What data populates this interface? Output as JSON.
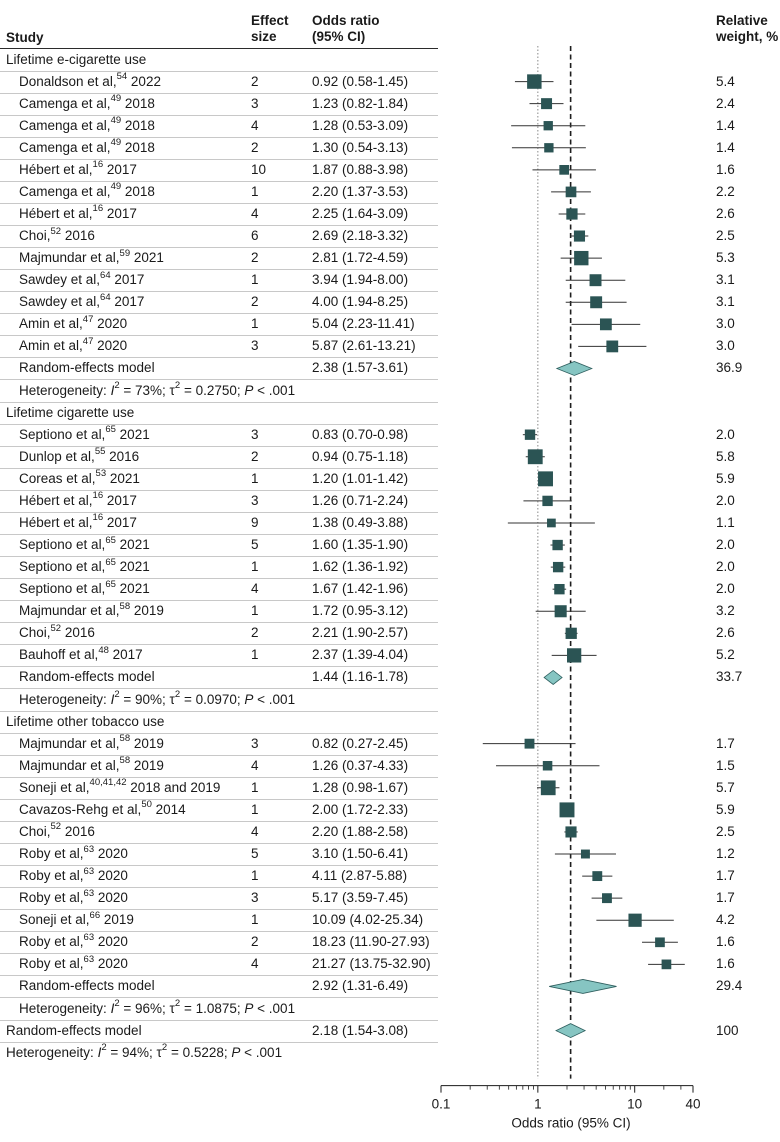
{
  "headers": {
    "study": "Study",
    "effect_size_line1": "Effect",
    "effect_size_line2": "size",
    "or_line1": "Odds ratio",
    "or_line2": "(95% CI)",
    "weight_line1": "Relative",
    "weight_line2": "weight, %"
  },
  "colors": {
    "marker": "#2b5454",
    "diamond": "#86c5c2",
    "diamond_stroke": "#2f5f5f",
    "line": "#333333"
  },
  "chart_data": {
    "type": "forest",
    "xlabel": "Odds ratio (95% CI)",
    "xscale": "log",
    "xlim": [
      0.1,
      40
    ],
    "ticks": [
      0.1,
      1,
      10,
      40
    ],
    "tick_labels": [
      "0.1",
      "1",
      "10",
      "40"
    ],
    "null_line": 1,
    "overall_line": 2.18,
    "rows": [
      {
        "kind": "section",
        "label": "Lifetime e-cigarette use"
      },
      {
        "kind": "study",
        "author": "Donaldson et al,",
        "ref": "54",
        "year": "2022",
        "es": "2",
        "text": "0.92 (0.58-1.45)",
        "or": 0.92,
        "lo": 0.58,
        "hi": 1.45,
        "w": 5.4,
        "wt": "5.4"
      },
      {
        "kind": "study",
        "author": "Camenga et al,",
        "ref": "49",
        "year": "2018",
        "es": "3",
        "text": "1.23 (0.82-1.84)",
        "or": 1.23,
        "lo": 0.82,
        "hi": 1.84,
        "w": 2.4,
        "wt": "2.4"
      },
      {
        "kind": "study",
        "author": "Camenga et al,",
        "ref": "49",
        "year": "2018",
        "es": "4",
        "text": "1.28 (0.53-3.09)",
        "or": 1.28,
        "lo": 0.53,
        "hi": 3.09,
        "w": 1.4,
        "wt": "1.4"
      },
      {
        "kind": "study",
        "author": "Camenga et al,",
        "ref": "49",
        "year": "2018",
        "es": "2",
        "text": "1.30 (0.54-3.13)",
        "or": 1.3,
        "lo": 0.54,
        "hi": 3.13,
        "w": 1.4,
        "wt": "1.4"
      },
      {
        "kind": "study",
        "author": "Hébert et al,",
        "ref": "16",
        "year": "2017",
        "es": "10",
        "text": "1.87 (0.88-3.98)",
        "or": 1.87,
        "lo": 0.88,
        "hi": 3.98,
        "w": 1.6,
        "wt": "1.6"
      },
      {
        "kind": "study",
        "author": "Camenga et al,",
        "ref": "49",
        "year": "2018",
        "es": "1",
        "text": "2.20 (1.37-3.53)",
        "or": 2.2,
        "lo": 1.37,
        "hi": 3.53,
        "w": 2.2,
        "wt": "2.2"
      },
      {
        "kind": "study",
        "author": "Hébert et al,",
        "ref": "16",
        "year": "2017",
        "es": "4",
        "text": "2.25 (1.64-3.09)",
        "or": 2.25,
        "lo": 1.64,
        "hi": 3.09,
        "w": 2.6,
        "wt": "2.6"
      },
      {
        "kind": "study",
        "author": "Choi,",
        "ref": "52",
        "year": "2016",
        "es": "6",
        "text": "2.69 (2.18-3.32)",
        "or": 2.69,
        "lo": 2.18,
        "hi": 3.32,
        "w": 2.5,
        "wt": "2.5"
      },
      {
        "kind": "study",
        "author": "Majmundar et al,",
        "ref": "59",
        "year": "2021",
        "es": "2",
        "text": "2.81 (1.72-4.59)",
        "or": 2.81,
        "lo": 1.72,
        "hi": 4.59,
        "w": 5.3,
        "wt": "5.3"
      },
      {
        "kind": "study",
        "author": "Sawdey et al,",
        "ref": "64",
        "year": "2017",
        "es": "1",
        "text": "3.94 (1.94-8.00)",
        "or": 3.94,
        "lo": 1.94,
        "hi": 8.0,
        "w": 3.1,
        "wt": "3.1"
      },
      {
        "kind": "study",
        "author": "Sawdey et al,",
        "ref": "64",
        "year": "2017",
        "es": "2",
        "text": "4.00 (1.94-8.25)",
        "or": 4.0,
        "lo": 1.94,
        "hi": 8.25,
        "w": 3.1,
        "wt": "3.1"
      },
      {
        "kind": "study",
        "author": "Amin et al,",
        "ref": "47",
        "year": "2020",
        "es": "1",
        "text": "5.04 (2.23-11.41)",
        "or": 5.04,
        "lo": 2.23,
        "hi": 11.41,
        "w": 3.0,
        "wt": "3.0"
      },
      {
        "kind": "study",
        "author": "Amin et al,",
        "ref": "47",
        "year": "2020",
        "es": "3",
        "text": "5.87 (2.61-13.21)",
        "or": 5.87,
        "lo": 2.61,
        "hi": 13.21,
        "w": 3.0,
        "wt": "3.0"
      },
      {
        "kind": "model",
        "label": "Random-effects model",
        "text": "2.38 (1.57-3.61)",
        "or": 2.38,
        "lo": 1.57,
        "hi": 3.61,
        "wt": "36.9"
      },
      {
        "kind": "het",
        "i2": "73%",
        "tau2": "0.2750",
        "p": ".001"
      },
      {
        "kind": "section",
        "label": "Lifetime cigarette use"
      },
      {
        "kind": "study",
        "author": "Septiono et al,",
        "ref": "65",
        "year": "2021",
        "es": "3",
        "text": "0.83 (0.70-0.98)",
        "or": 0.83,
        "lo": 0.7,
        "hi": 0.98,
        "w": 2.0,
        "wt": "2.0"
      },
      {
        "kind": "study",
        "author": "Dunlop et al,",
        "ref": "55",
        "year": "2016",
        "es": "2",
        "text": "0.94 (0.75-1.18)",
        "or": 0.94,
        "lo": 0.75,
        "hi": 1.18,
        "w": 5.8,
        "wt": "5.8"
      },
      {
        "kind": "study",
        "author": "Coreas et al,",
        "ref": "53",
        "year": "2021",
        "es": "1",
        "text": "1.20 (1.01-1.42)",
        "or": 1.2,
        "lo": 1.01,
        "hi": 1.42,
        "w": 5.9,
        "wt": "5.9"
      },
      {
        "kind": "study",
        "author": "Hébert et al,",
        "ref": "16",
        "year": "2017",
        "es": "3",
        "text": "1.26 (0.71-2.24)",
        "or": 1.26,
        "lo": 0.71,
        "hi": 2.24,
        "w": 2.0,
        "wt": "2.0"
      },
      {
        "kind": "study",
        "author": "Hébert et al,",
        "ref": "16",
        "year": "2017",
        "es": "9",
        "text": "1.38 (0.49-3.88)",
        "or": 1.38,
        "lo": 0.49,
        "hi": 3.88,
        "w": 1.1,
        "wt": "1.1"
      },
      {
        "kind": "study",
        "author": "Septiono et al,",
        "ref": "65",
        "year": "2021",
        "es": "5",
        "text": "1.60 (1.35-1.90)",
        "or": 1.6,
        "lo": 1.35,
        "hi": 1.9,
        "w": 2.0,
        "wt": "2.0"
      },
      {
        "kind": "study",
        "author": "Septiono et al,",
        "ref": "65",
        "year": "2021",
        "es": "1",
        "text": "1.62 (1.36-1.92)",
        "or": 1.62,
        "lo": 1.36,
        "hi": 1.92,
        "w": 2.0,
        "wt": "2.0"
      },
      {
        "kind": "study",
        "author": "Septiono et al,",
        "ref": "65",
        "year": "2021",
        "es": "4",
        "text": "1.67 (1.42-1.96)",
        "or": 1.67,
        "lo": 1.42,
        "hi": 1.96,
        "w": 2.0,
        "wt": "2.0"
      },
      {
        "kind": "study",
        "author": "Majmundar et al,",
        "ref": "58",
        "year": "2019",
        "es": "1",
        "text": "1.72 (0.95-3.12)",
        "or": 1.72,
        "lo": 0.95,
        "hi": 3.12,
        "w": 3.2,
        "wt": "3.2"
      },
      {
        "kind": "study",
        "author": "Choi,",
        "ref": "52",
        "year": "2016",
        "es": "2",
        "text": "2.21 (1.90-2.57)",
        "or": 2.21,
        "lo": 1.9,
        "hi": 2.57,
        "w": 2.6,
        "wt": "2.6"
      },
      {
        "kind": "study",
        "author": "Bauhoff et al,",
        "ref": "48",
        "year": "2017",
        "es": "1",
        "text": "2.37 (1.39-4.04)",
        "or": 2.37,
        "lo": 1.39,
        "hi": 4.04,
        "w": 5.2,
        "wt": "5.2"
      },
      {
        "kind": "model",
        "label": "Random-effects model",
        "text": "1.44 (1.16-1.78)",
        "or": 1.44,
        "lo": 1.16,
        "hi": 1.78,
        "wt": "33.7"
      },
      {
        "kind": "het",
        "i2": "90%",
        "tau2": "0.0970",
        "p": ".001"
      },
      {
        "kind": "section",
        "label": "Lifetime other tobacco use"
      },
      {
        "kind": "study",
        "author": "Majmundar et al,",
        "ref": "58",
        "year": "2019",
        "es": "3",
        "text": "0.82 (0.27-2.45)",
        "or": 0.82,
        "lo": 0.27,
        "hi": 2.45,
        "w": 1.7,
        "wt": "1.7"
      },
      {
        "kind": "study",
        "author": "Majmundar et al,",
        "ref": "58",
        "year": "2019",
        "es": "4",
        "text": "1.26 (0.37-4.33)",
        "or": 1.26,
        "lo": 0.37,
        "hi": 4.33,
        "w": 1.5,
        "wt": "1.5"
      },
      {
        "kind": "study",
        "author": "Soneji et al,",
        "ref": "40,41,42",
        "year": "2018 and 2019",
        "es": "1",
        "text": "1.28 (0.98-1.67)",
        "or": 1.28,
        "lo": 0.98,
        "hi": 1.67,
        "w": 5.7,
        "wt": "5.7"
      },
      {
        "kind": "study",
        "author": "Cavazos-Rehg et al,",
        "ref": "50",
        "year": "2014",
        "es": "1",
        "text": "2.00 (1.72-2.33)",
        "or": 2.0,
        "lo": 1.72,
        "hi": 2.33,
        "w": 5.9,
        "wt": "5.9"
      },
      {
        "kind": "study",
        "author": "Choi,",
        "ref": "52",
        "year": "2016",
        "es": "4",
        "text": "2.20 (1.88-2.58)",
        "or": 2.2,
        "lo": 1.88,
        "hi": 2.58,
        "w": 2.5,
        "wt": "2.5"
      },
      {
        "kind": "study",
        "author": "Roby et al,",
        "ref": "63",
        "year": "2020",
        "es": "5",
        "text": "3.10 (1.50-6.41)",
        "or": 3.1,
        "lo": 1.5,
        "hi": 6.41,
        "w": 1.2,
        "wt": "1.2"
      },
      {
        "kind": "study",
        "author": "Roby et al,",
        "ref": "63",
        "year": "2020",
        "es": "1",
        "text": "4.11 (2.87-5.88)",
        "or": 4.11,
        "lo": 2.87,
        "hi": 5.88,
        "w": 1.7,
        "wt": "1.7"
      },
      {
        "kind": "study",
        "author": "Roby et al,",
        "ref": "63",
        "year": "2020",
        "es": "3",
        "text": "5.17 (3.59-7.45)",
        "or": 5.17,
        "lo": 3.59,
        "hi": 7.45,
        "w": 1.7,
        "wt": "1.7"
      },
      {
        "kind": "study",
        "author": "Soneji et al,",
        "ref": "66",
        "year": "2019",
        "es": "1",
        "text": "10.09 (4.02-25.34)",
        "or": 10.09,
        "lo": 4.02,
        "hi": 25.34,
        "w": 4.2,
        "wt": "4.2"
      },
      {
        "kind": "study",
        "author": "Roby et al,",
        "ref": "63",
        "year": "2020",
        "es": "2",
        "text": "18.23 (11.90-27.93)",
        "or": 18.23,
        "lo": 11.9,
        "hi": 27.93,
        "w": 1.6,
        "wt": "1.6"
      },
      {
        "kind": "study",
        "author": "Roby et al,",
        "ref": "63",
        "year": "2020",
        "es": "4",
        "text": "21.27 (13.75-32.90)",
        "or": 21.27,
        "lo": 13.75,
        "hi": 32.9,
        "w": 1.6,
        "wt": "1.6"
      },
      {
        "kind": "model",
        "label": "Random-effects model",
        "text": "2.92 (1.31-6.49)",
        "or": 2.92,
        "lo": 1.31,
        "hi": 6.49,
        "wt": "29.4"
      },
      {
        "kind": "het",
        "i2": "96%",
        "tau2": "1.0875",
        "p": ".001"
      },
      {
        "kind": "model",
        "label": "Random-effects model",
        "text": "2.18 (1.54-3.08)",
        "or": 2.18,
        "lo": 1.54,
        "hi": 3.08,
        "wt": "100",
        "overall": true
      },
      {
        "kind": "het",
        "i2": "94%",
        "tau2": "0.5228",
        "p": ".001",
        "overall": true
      }
    ]
  }
}
